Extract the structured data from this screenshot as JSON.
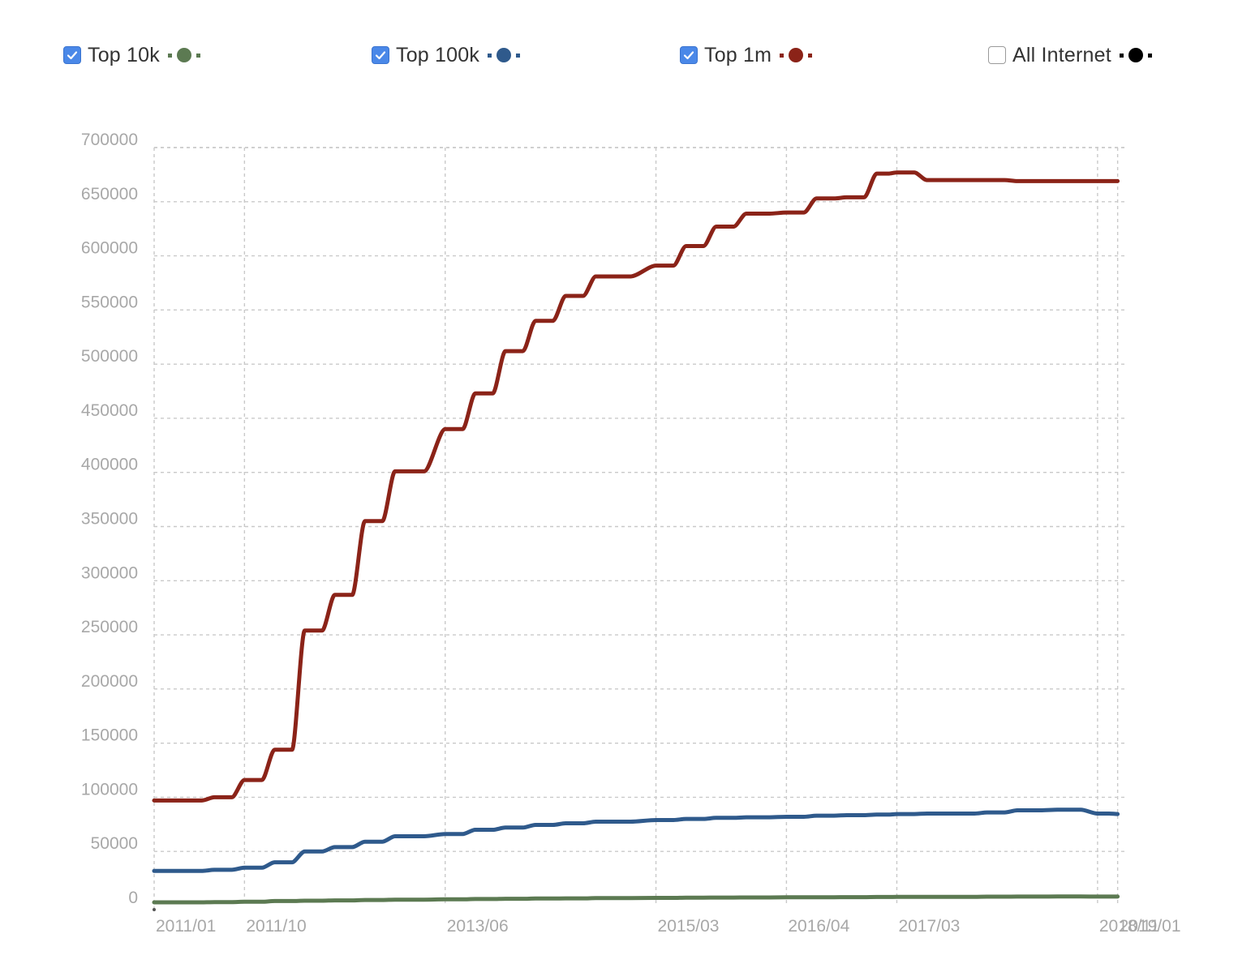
{
  "legend": [
    {
      "label": "Top 10k",
      "checked": true,
      "color": "#5c7a52"
    },
    {
      "label": "Top 100k",
      "checked": true,
      "color": "#2f5a8c"
    },
    {
      "label": "Top 1m",
      "checked": true,
      "color": "#8b2318"
    },
    {
      "label": "All Internet",
      "checked": false,
      "color": "#000000"
    }
  ],
  "chart_data": {
    "type": "line",
    "title": "",
    "xlabel": "",
    "ylabel": "",
    "ylim": [
      0,
      700000
    ],
    "y_ticks": [
      0,
      50000,
      100000,
      150000,
      200000,
      250000,
      300000,
      350000,
      400000,
      450000,
      500000,
      550000,
      600000,
      650000,
      700000
    ],
    "x_tick_labels": [
      "2011/01",
      "2011/10",
      "2013/06",
      "2015/03",
      "2016/04",
      "2017/03",
      "2018/11",
      "2019/01"
    ],
    "grid": true,
    "x": [
      "2011/01",
      "2011/04",
      "2011/07",
      "2011/10",
      "2012/01",
      "2012/04",
      "2012/07",
      "2012/10",
      "2013/01",
      "2013/06",
      "2013/09",
      "2013/12",
      "2014/03",
      "2014/06",
      "2014/09",
      "2015/03",
      "2015/06",
      "2015/09",
      "2015/12",
      "2016/04",
      "2016/07",
      "2016/10",
      "2017/01",
      "2017/03",
      "2017/06",
      "2017/09",
      "2017/12",
      "2018/03",
      "2018/07",
      "2018/11",
      "2019/01"
    ],
    "series": [
      {
        "name": "Top 10k",
        "color": "#5c7a52",
        "values": [
          3000,
          3000,
          3200,
          3500,
          4200,
          4500,
          4800,
          5200,
          5500,
          5800,
          6100,
          6300,
          6500,
          6700,
          6900,
          7100,
          7300,
          7400,
          7500,
          7600,
          7700,
          7800,
          7900,
          8000,
          8000,
          8100,
          8200,
          8300,
          8400,
          8300,
          8300
        ]
      },
      {
        "name": "Top 100k",
        "color": "#2f5a8c",
        "values": [
          32000,
          32000,
          33000,
          35000,
          40000,
          50000,
          54000,
          59000,
          64000,
          66000,
          70000,
          72000,
          74500,
          76000,
          77500,
          79000,
          80000,
          81000,
          81500,
          82000,
          83000,
          83500,
          84000,
          84500,
          85000,
          85000,
          86000,
          88000,
          88500,
          85000,
          84500
        ]
      },
      {
        "name": "Top 1m",
        "color": "#8b2318",
        "values": [
          97000,
          97000,
          100000,
          116000,
          144000,
          254000,
          287000,
          355000,
          401000,
          440000,
          473000,
          512000,
          540000,
          563000,
          581000,
          591000,
          609000,
          627000,
          639000,
          640000,
          653000,
          654000,
          676000,
          677000,
          670000,
          670000,
          670000,
          669000,
          669000,
          669000,
          669000
        ]
      }
    ]
  }
}
